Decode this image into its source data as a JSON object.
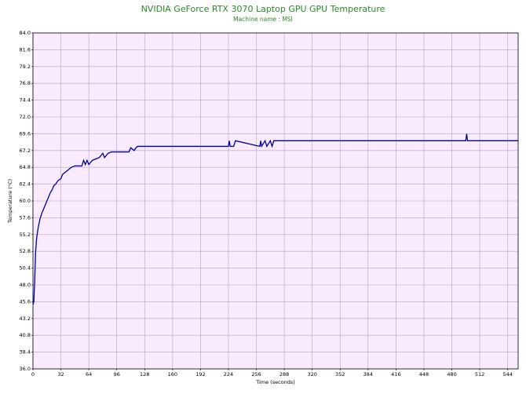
{
  "chart_data": {
    "type": "line",
    "title": "NVIDIA GeForce RTX 3070 Laptop GPU GPU Temperature",
    "subtitle": "Machine name : MSI",
    "x_label": "Time (seconds)",
    "y_label": "Temperature (°C)",
    "xlim": [
      0,
      556
    ],
    "ylim": [
      36,
      84
    ],
    "xticks": [
      0,
      32,
      64,
      96,
      128,
      160,
      192,
      224,
      256,
      288,
      320,
      352,
      384,
      416,
      448,
      480,
      512,
      544
    ],
    "yticks": [
      {
        "value": 84,
        "label": "84.0"
      },
      81.6,
      79.2,
      76.8,
      74.4,
      {
        "value": 72,
        "label": "72.0"
      },
      69.6,
      67.2,
      64.8,
      62.4,
      {
        "value": 60,
        "label": "60.0"
      },
      57.6,
      55.2,
      52.8,
      50.4,
      {
        "value": 48,
        "label": "48.0"
      },
      45.6,
      43.2,
      40.8,
      38.4,
      {
        "value": 36,
        "label": "36.0"
      }
    ],
    "grid": true,
    "background": "#f8eaff",
    "series": [
      {
        "name": "GPU Temperature",
        "color": "#0000a0",
        "x": [
          0,
          1,
          2,
          3,
          4,
          5,
          6,
          7,
          8,
          10,
          12,
          14,
          16,
          18,
          20,
          22,
          24,
          26,
          28,
          32,
          34,
          36,
          42,
          44,
          48,
          56,
          58,
          60,
          62,
          64,
          68,
          72,
          76,
          80,
          82,
          86,
          90,
          110,
          112,
          116,
          118,
          120,
          224,
          225,
          226,
          230,
          232,
          260,
          261,
          262,
          266,
          268,
          272,
          274,
          276,
          496,
          497,
          498,
          556
        ],
        "values": [
          45.2,
          45.6,
          48.8,
          52.6,
          54.4,
          55.4,
          56.2,
          56.8,
          57.4,
          58.2,
          58.8,
          59.4,
          60.0,
          60.6,
          61.2,
          61.6,
          62.2,
          62.4,
          62.8,
          63.2,
          63.8,
          64.0,
          64.6,
          64.8,
          65.0,
          65.0,
          65.8,
          65.2,
          65.8,
          65.2,
          65.8,
          66.0,
          66.2,
          66.8,
          66.2,
          66.8,
          67.0,
          67.0,
          67.6,
          67.2,
          67.6,
          67.8,
          67.8,
          68.6,
          67.8,
          67.8,
          68.6,
          67.8,
          68.6,
          67.8,
          68.6,
          67.8,
          68.6,
          67.8,
          68.6,
          68.6,
          69.6,
          68.6,
          68.6
        ]
      }
    ]
  }
}
